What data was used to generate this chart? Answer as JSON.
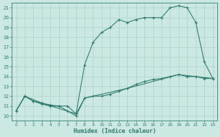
{
  "xlabel": "Humidex (Indice chaleur)",
  "background_color": "#cce8e3",
  "grid_color": "#aed4cd",
  "line_color": "#2a7a6e",
  "xlim": [
    -0.5,
    23.5
  ],
  "ylim": [
    9.5,
    21.5
  ],
  "xticks": [
    0,
    1,
    2,
    3,
    4,
    5,
    6,
    7,
    8,
    9,
    10,
    11,
    12,
    13,
    14,
    15,
    16,
    17,
    18,
    19,
    20,
    21,
    22,
    23
  ],
  "yticks": [
    10,
    11,
    12,
    13,
    14,
    15,
    16,
    17,
    18,
    19,
    20,
    21
  ],
  "line_main_x": [
    0,
    1,
    2,
    3,
    4,
    5,
    6,
    7,
    8,
    9,
    10,
    11,
    12,
    13,
    14,
    15,
    16,
    17,
    18,
    19,
    20,
    21,
    22,
    23
  ],
  "line_main_y": [
    10.5,
    12.0,
    11.5,
    11.3,
    11.1,
    11.0,
    11.0,
    10.2,
    15.2,
    17.5,
    18.5,
    19.0,
    19.8,
    19.5,
    19.8,
    20.0,
    20.0,
    20.0,
    21.0,
    21.2,
    21.0,
    19.5,
    15.5,
    13.8
  ],
  "line_flat_x": [
    0,
    1,
    2,
    3,
    4,
    5,
    6,
    7,
    8,
    9,
    10,
    11,
    12,
    13,
    14,
    15,
    16,
    17,
    18,
    19,
    20,
    21,
    22,
    23
  ],
  "line_flat_y": [
    10.5,
    12.0,
    11.5,
    11.2,
    11.0,
    11.0,
    10.5,
    10.0,
    11.8,
    12.0,
    12.0,
    12.2,
    12.5,
    12.8,
    13.2,
    13.5,
    13.7,
    13.8,
    14.0,
    14.2,
    14.0,
    14.0,
    13.8,
    13.8
  ],
  "line_diag_x": [
    0,
    1,
    3,
    7,
    8,
    13,
    19,
    21,
    23
  ],
  "line_diag_y": [
    10.5,
    12.0,
    11.3,
    10.2,
    11.8,
    12.8,
    14.2,
    14.0,
    13.8
  ]
}
